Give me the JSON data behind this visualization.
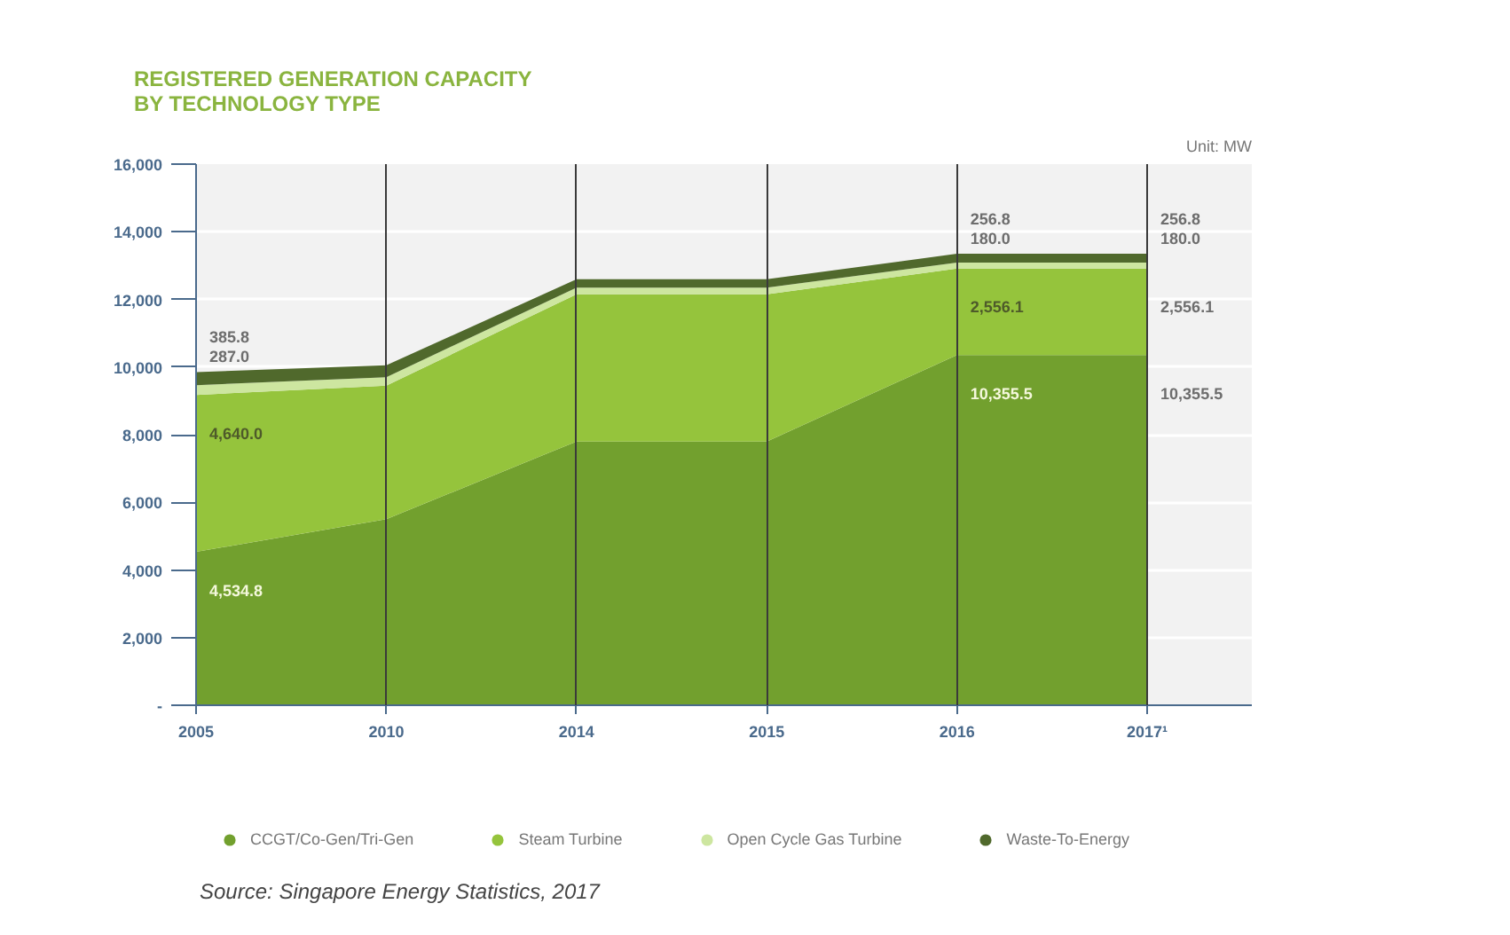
{
  "chart_data": {
    "type": "area",
    "title": "REGISTERED GENERATION CAPACITY BY TECHNOLOGY TYPE",
    "categories": [
      "2005",
      "2010",
      "2014",
      "2015",
      "2016",
      "2017¹"
    ],
    "stacked": true,
    "ylim": [
      0,
      16000
    ],
    "yticks": [
      {
        "value": 0,
        "label": "-"
      },
      {
        "value": 2000,
        "label": "2,000"
      },
      {
        "value": 4000,
        "label": "4,000"
      },
      {
        "value": 6000,
        "label": "6,000"
      },
      {
        "value": 8000,
        "label": "8,000"
      },
      {
        "value": 10000,
        "label": "10,000"
      },
      {
        "value": 12000,
        "label": "12,000"
      },
      {
        "value": 14000,
        "label": "14,000"
      },
      {
        "value": 16000,
        "label": "16,000"
      }
    ],
    "grid": true,
    "legend": "bottom",
    "series": [
      {
        "name": "CCGT/Co-Gen/Tri-Gen",
        "color": "#72a02e",
        "values": [
          4534.8,
          5500,
          7800,
          7800,
          10355.5,
          10355.5
        ],
        "value_labels": [
          "4,534.8",
          null,
          null,
          null,
          "10,355.5",
          "10,355.5"
        ]
      },
      {
        "name": "Steam Turbine",
        "color": "#95c43c",
        "values": [
          4640.0,
          3950,
          4350,
          4350,
          2556.1,
          2556.1
        ],
        "value_labels": [
          "4,640.0",
          null,
          null,
          null,
          "2,556.1",
          "2,556.1"
        ]
      },
      {
        "name": "Open Cycle Gas Turbine",
        "color": "#cde6a0",
        "values": [
          287.0,
          250,
          200,
          200,
          180.0,
          180.0
        ],
        "value_labels": [
          "287.0",
          null,
          null,
          null,
          "180.0",
          "180.0"
        ]
      },
      {
        "name": "Waste-To-Energy",
        "color": "#50692c",
        "values": [
          385.8,
          350,
          250,
          250,
          256.8,
          256.8
        ],
        "value_labels": [
          "385.8",
          null,
          null,
          null,
          "256.8",
          "256.8"
        ]
      }
    ],
    "annotations": [
      "Unit: MW",
      "Source: Singapore Energy Statistics, 2017"
    ]
  }
}
